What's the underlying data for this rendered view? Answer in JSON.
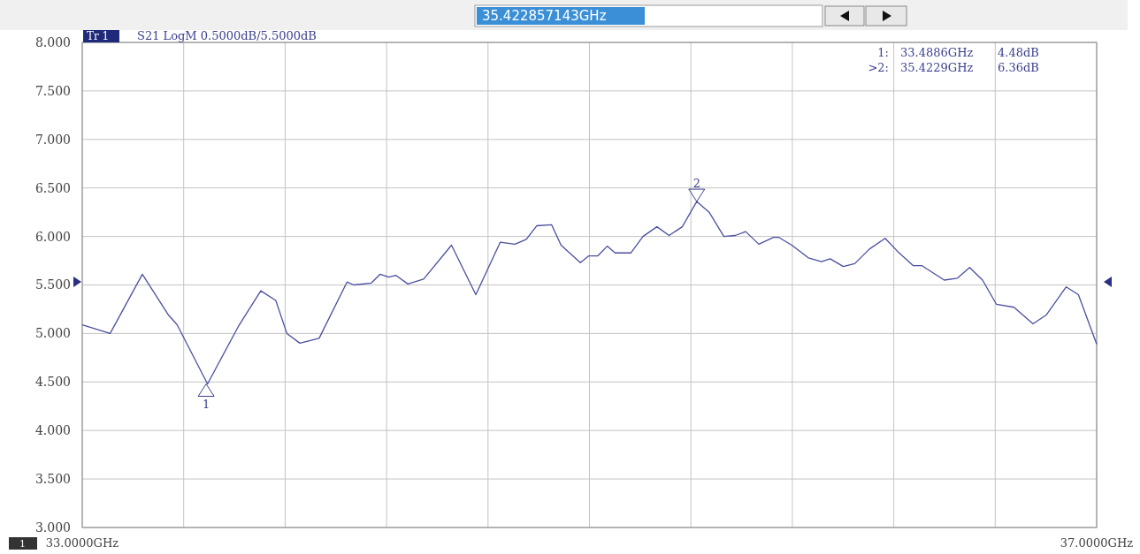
{
  "chart_data": {
    "type": "line",
    "title": "S21 LogM 0.5000dB/5.5000dB",
    "x": [
      33.0,
      33.11,
      33.237,
      33.34,
      33.374,
      33.494,
      33.615,
      33.704,
      33.763,
      33.807,
      33.858,
      33.934,
      34.044,
      34.071,
      34.14,
      34.174,
      34.209,
      34.236,
      34.284,
      34.346,
      34.456,
      34.552,
      34.648,
      34.706,
      34.751,
      34.792,
      34.851,
      34.888,
      34.964,
      34.998,
      35.033,
      35.07,
      35.101,
      35.163,
      35.211,
      35.266,
      35.314,
      35.366,
      35.423,
      35.472,
      35.53,
      35.575,
      35.616,
      35.668,
      35.726,
      35.747,
      35.798,
      35.863,
      35.915,
      35.949,
      36.001,
      36.046,
      36.104,
      36.166,
      36.217,
      36.276,
      36.31,
      36.399,
      36.451,
      36.499,
      36.55,
      36.605,
      36.674,
      36.749,
      36.801,
      36.88,
      36.928,
      37.0
    ],
    "series": [
      {
        "color": "#4a4f9e",
        "values": [
          5.09,
          5.0,
          5.61,
          5.19,
          5.09,
          4.48,
          5.07,
          5.44,
          5.34,
          5.0,
          4.9,
          4.95,
          5.53,
          5.5,
          5.52,
          5.61,
          5.58,
          5.6,
          5.51,
          5.56,
          5.91,
          5.4,
          5.94,
          5.92,
          5.97,
          6.11,
          6.12,
          5.91,
          5.73,
          5.8,
          5.8,
          5.9,
          5.83,
          5.83,
          6.0,
          6.1,
          6.01,
          6.1,
          6.36,
          6.25,
          6.0,
          6.01,
          6.05,
          5.92,
          5.99,
          5.99,
          5.91,
          5.78,
          5.74,
          5.77,
          5.69,
          5.72,
          5.87,
          5.98,
          5.84,
          5.7,
          5.7,
          5.55,
          5.57,
          5.68,
          5.55,
          5.3,
          5.27,
          5.1,
          5.19,
          5.48,
          5.4,
          4.89
        ]
      }
    ],
    "xlim": [
      33,
      37
    ],
    "xticks": [
      {
        "value": 33,
        "label": "33.0000GHz"
      },
      {
        "value": 33.4,
        "label": null
      },
      {
        "value": 33.8,
        "label": null
      },
      {
        "value": 34.2,
        "label": null
      },
      {
        "value": 34.6,
        "label": null
      },
      {
        "value": 35,
        "label": null
      },
      {
        "value": 35.4,
        "label": null
      },
      {
        "value": 35.8,
        "label": null
      },
      {
        "value": 36.2,
        "label": null
      },
      {
        "value": 36.6,
        "label": null
      },
      {
        "value": 37,
        "label": "37.0000GHz"
      }
    ],
    "ylim": [
      3,
      8
    ],
    "yticks": [
      {
        "value": 3,
        "label": "3.000"
      },
      {
        "value": 3.5,
        "label": "3.500"
      },
      {
        "value": 4,
        "label": "4.000"
      },
      {
        "value": 4.5,
        "label": "4.500"
      },
      {
        "value": 5,
        "label": "5.000"
      },
      {
        "value": 5.5,
        "label": "5.500"
      },
      {
        "value": 6,
        "label": "6.000"
      },
      {
        "value": 6.5,
        "label": "6.500"
      },
      {
        "value": 7,
        "label": "7.000"
      },
      {
        "value": 7.5,
        "label": "7.500"
      },
      {
        "value": 8,
        "label": "8.000"
      }
    ],
    "grid": true,
    "marker": "none",
    "annotations": [
      {
        "text": "1",
        "x": 33.4886,
        "y": 4.48
      },
      {
        "text": "2",
        "x": 35.4229,
        "y": 6.36
      },
      "Tr 1",
      "35.422857143GHz",
      "1:",
      "33.4886GHz",
      "4.48dB",
      ">2:",
      "35.4229GHz",
      "6.36dB",
      "1"
    ]
  }
}
